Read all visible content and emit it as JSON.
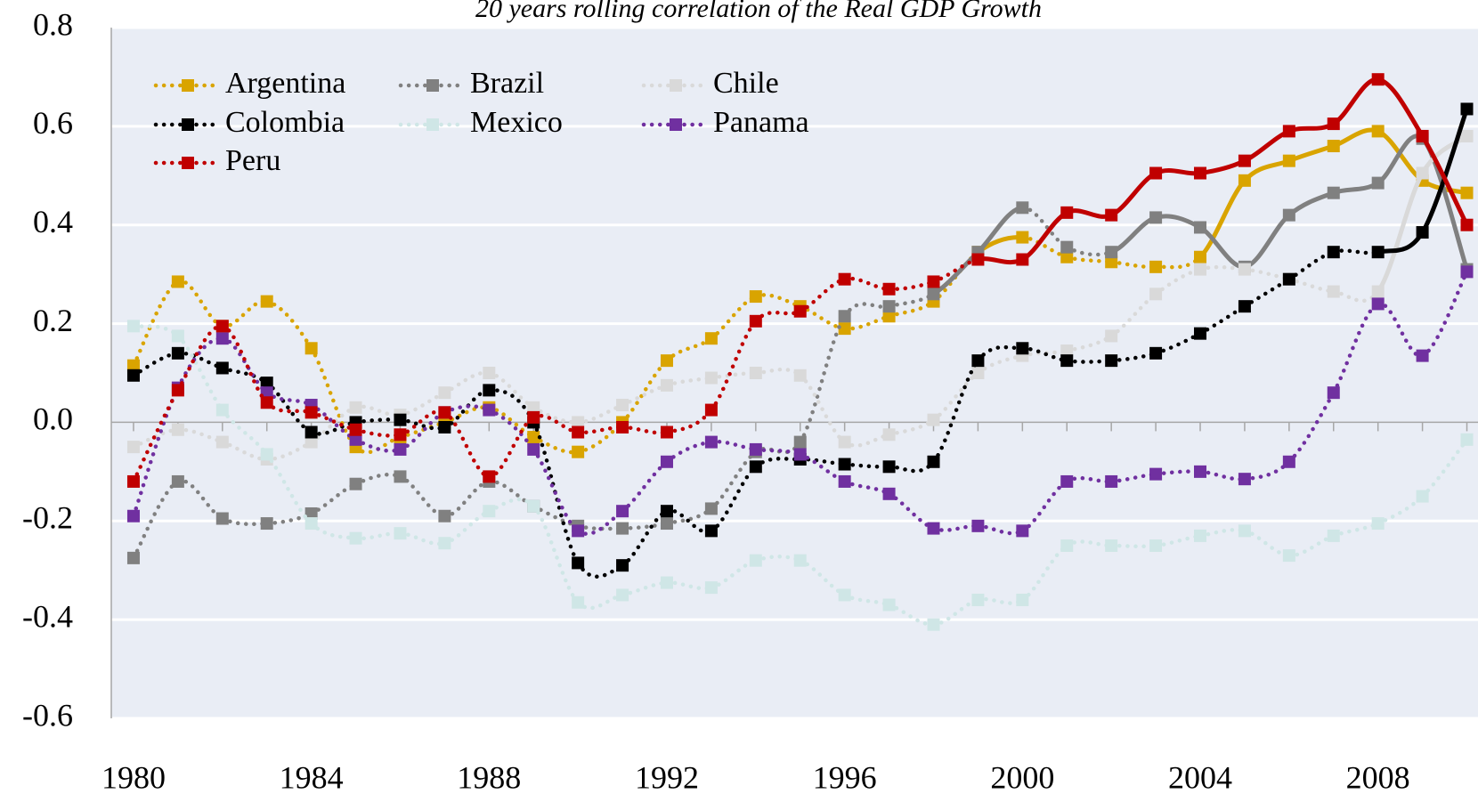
{
  "chart_data": {
    "type": "line",
    "title": "20 years rolling correlation of  the Real GDP Growth",
    "x": [
      1980,
      1981,
      1982,
      1983,
      1984,
      1985,
      1986,
      1987,
      1988,
      1989,
      1990,
      1991,
      1992,
      1993,
      1994,
      1995,
      1996,
      1997,
      1998,
      1999,
      2000,
      2001,
      2002,
      2003,
      2004,
      2005,
      2006,
      2007,
      2008,
      2009,
      2010
    ],
    "xlim": [
      1979.5,
      2010.25
    ],
    "xticks": [
      1980,
      1984,
      1988,
      1992,
      1996,
      2000,
      2004,
      2008
    ],
    "ylim": [
      -0.6,
      0.8
    ],
    "yticks": [
      -0.6,
      -0.4,
      -0.2,
      {
        "value": 0,
        "label": "0.0"
      },
      0.2,
      0.4,
      0.6,
      0.8
    ],
    "grid": true,
    "legend": "upper left",
    "series": [
      {
        "name": "Argentina",
        "color": "#d9a400",
        "solid_segments": [
          [
            1999,
            2000
          ],
          [
            2004,
            2010
          ]
        ],
        "values": [
          0.115,
          0.285,
          0.195,
          0.245,
          0.15,
          -0.05,
          -0.03,
          0.0,
          0.03,
          -0.03,
          -0.06,
          0.0,
          0.125,
          0.17,
          0.255,
          0.235,
          0.19,
          0.215,
          0.245,
          0.345,
          0.375,
          0.335,
          0.325,
          0.315,
          0.335,
          0.49,
          0.53,
          0.56,
          0.59,
          0.49,
          0.465
        ]
      },
      {
        "name": "Brazil",
        "color": "#808080",
        "solid_segments": [
          [
            1998,
            2000
          ],
          [
            2002,
            2010
          ]
        ],
        "values": [
          -0.275,
          -0.12,
          -0.195,
          -0.205,
          -0.185,
          -0.125,
          -0.11,
          -0.19,
          -0.12,
          -0.17,
          -0.21,
          -0.215,
          -0.205,
          -0.175,
          -0.06,
          -0.04,
          0.215,
          0.235,
          0.26,
          0.345,
          0.435,
          0.355,
          0.345,
          0.415,
          0.395,
          0.315,
          0.42,
          0.465,
          0.485,
          0.575,
          0.31
        ]
      },
      {
        "name": "Chile",
        "color": "#d9d9d9",
        "solid_segments": [
          [
            2008,
            2010
          ]
        ],
        "values": [
          -0.05,
          -0.015,
          -0.04,
          -0.075,
          -0.04,
          0.03,
          0.015,
          0.06,
          0.1,
          0.03,
          0.0,
          0.035,
          0.075,
          0.09,
          0.1,
          0.095,
          -0.04,
          -0.025,
          0.005,
          0.1,
          0.135,
          0.145,
          0.175,
          0.26,
          0.31,
          0.31,
          0.29,
          0.265,
          0.265,
          0.505,
          0.58
        ]
      },
      {
        "name": "Colombia",
        "color": "#000000",
        "solid_segments": [
          [
            2008,
            2010
          ]
        ],
        "values": [
          0.095,
          0.14,
          0.11,
          0.08,
          -0.02,
          0.0,
          0.005,
          -0.01,
          0.065,
          0.0,
          -0.285,
          -0.29,
          -0.18,
          -0.22,
          -0.09,
          -0.075,
          -0.085,
          -0.09,
          -0.08,
          0.125,
          0.15,
          0.125,
          0.125,
          0.14,
          0.18,
          0.235,
          0.29,
          0.345,
          0.345,
          0.385,
          0.635
        ]
      },
      {
        "name": "Mexico",
        "color": "#cfe6e6",
        "solid_segments": [],
        "values": [
          0.195,
          0.175,
          0.025,
          -0.065,
          -0.205,
          -0.235,
          -0.225,
          -0.245,
          -0.18,
          -0.17,
          -0.365,
          -0.35,
          -0.325,
          -0.335,
          -0.28,
          -0.28,
          -0.35,
          -0.37,
          -0.41,
          -0.36,
          -0.36,
          -0.25,
          -0.25,
          -0.25,
          -0.23,
          -0.22,
          -0.27,
          -0.23,
          -0.205,
          -0.15,
          -0.035
        ]
      },
      {
        "name": "Panama",
        "color": "#7030a0",
        "solid_segments": [],
        "values": [
          -0.19,
          0.07,
          0.17,
          0.06,
          0.035,
          -0.035,
          -0.055,
          0.02,
          0.025,
          -0.055,
          -0.22,
          -0.18,
          -0.08,
          -0.04,
          -0.055,
          -0.065,
          -0.12,
          -0.145,
          -0.215,
          -0.21,
          -0.22,
          -0.12,
          -0.12,
          -0.105,
          -0.1,
          -0.115,
          -0.08,
          0.06,
          0.24,
          0.135,
          0.305
        ]
      },
      {
        "name": "Peru",
        "color": "#c00000",
        "solid_segments": [
          [
            1999,
            2010
          ]
        ],
        "values": [
          -0.12,
          0.065,
          0.195,
          0.04,
          0.02,
          -0.015,
          -0.025,
          0.02,
          -0.11,
          0.01,
          -0.02,
          -0.01,
          -0.02,
          0.025,
          0.205,
          0.225,
          0.29,
          0.27,
          0.285,
          0.33,
          0.33,
          0.425,
          0.42,
          0.505,
          0.505,
          0.53,
          0.59,
          0.605,
          0.695,
          0.58,
          0.4
        ]
      }
    ]
  }
}
